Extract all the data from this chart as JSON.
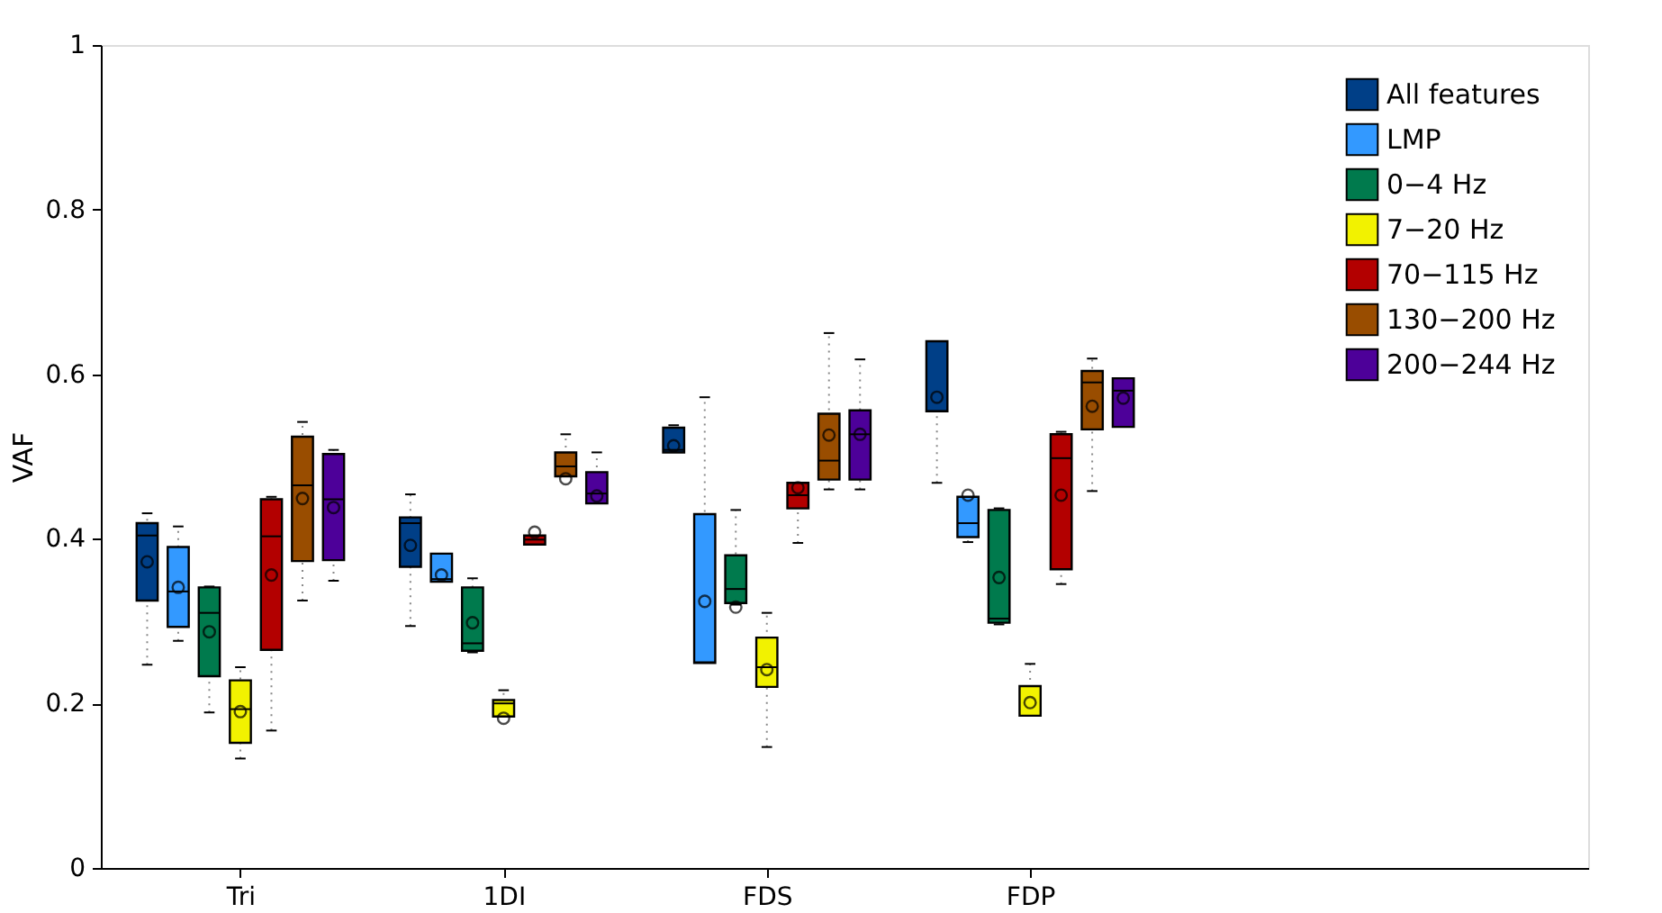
{
  "chart_data": {
    "type": "box",
    "ylabel": "VAF",
    "categories": [
      "Tri",
      "1DI",
      "FDS",
      "FDP"
    ],
    "ylim": [
      0,
      1
    ],
    "yticks": [
      0,
      0.2,
      0.4,
      0.6,
      0.8,
      1
    ],
    "grid": false,
    "legend": "top right",
    "series": [
      {
        "name": "All features",
        "color": "#003f87",
        "boxes": [
          {
            "low": 0.247,
            "q1": 0.325,
            "median": 0.404,
            "q3": 0.419,
            "high": 0.431,
            "mean": 0.372
          },
          {
            "low": 0.294,
            "q1": 0.366,
            "median": 0.419,
            "q3": 0.426,
            "high": 0.454,
            "mean": 0.392
          },
          {
            "low": 0.505,
            "q1": 0.505,
            "median": 0.508,
            "q3": 0.535,
            "high": 0.538,
            "mean": 0.513
          },
          {
            "low": 0.468,
            "q1": 0.555,
            "median": 0.555,
            "q3": 0.64,
            "high": 0.64,
            "mean": 0.572
          }
        ]
      },
      {
        "name": "LMP",
        "color": "#3399ff",
        "boxes": [
          {
            "low": 0.276,
            "q1": 0.293,
            "median": 0.336,
            "q3": 0.39,
            "high": 0.415,
            "mean": 0.341
          },
          {
            "low": 0.348,
            "q1": 0.348,
            "median": 0.351,
            "q3": 0.382,
            "high": 0.382,
            "mean": 0.356
          },
          {
            "low": 0.249,
            "q1": 0.249,
            "median": 0.25,
            "q3": 0.43,
            "high": 0.572,
            "mean": 0.324
          },
          {
            "low": 0.396,
            "q1": 0.402,
            "median": 0.419,
            "q3": 0.451,
            "high": 0.451,
            "mean": 0.453
          }
        ]
      },
      {
        "name": "0−4 Hz",
        "color": "#007a4d",
        "boxes": [
          {
            "low": 0.189,
            "q1": 0.233,
            "median": 0.31,
            "q3": 0.341,
            "high": 0.342,
            "mean": 0.287
          },
          {
            "low": 0.262,
            "q1": 0.264,
            "median": 0.273,
            "q3": 0.341,
            "high": 0.352,
            "mean": 0.298
          },
          {
            "low": 0.32,
            "q1": 0.322,
            "median": 0.339,
            "q3": 0.38,
            "high": 0.435,
            "mean": 0.317
          },
          {
            "low": 0.296,
            "q1": 0.298,
            "median": 0.303,
            "q3": 0.435,
            "high": 0.437,
            "mean": 0.353
          }
        ]
      },
      {
        "name": "7−20 Hz",
        "color": "#f2f200",
        "boxes": [
          {
            "low": 0.133,
            "q1": 0.152,
            "median": 0.193,
            "q3": 0.228,
            "high": 0.244,
            "mean": 0.19
          },
          {
            "low": 0.184,
            "q1": 0.184,
            "median": 0.2,
            "q3": 0.204,
            "high": 0.216,
            "mean": 0.182
          },
          {
            "low": 0.147,
            "q1": 0.22,
            "median": 0.244,
            "q3": 0.28,
            "high": 0.31,
            "mean": 0.241
          },
          {
            "low": 0.185,
            "q1": 0.185,
            "median": 0.221,
            "q3": 0.221,
            "high": 0.248,
            "mean": 0.201
          }
        ]
      },
      {
        "name": "70−115 Hz",
        "color": "#b30000",
        "boxes": [
          {
            "low": 0.167,
            "q1": 0.265,
            "median": 0.403,
            "q3": 0.448,
            "high": 0.451,
            "mean": 0.356
          },
          {
            "low": 0.393,
            "q1": 0.393,
            "median": 0.399,
            "q3": 0.404,
            "high": 0.404,
            "mean": 0.408
          },
          {
            "low": 0.395,
            "q1": 0.437,
            "median": 0.453,
            "q3": 0.468,
            "high": 0.468,
            "mean": 0.462
          },
          {
            "low": 0.345,
            "q1": 0.363,
            "median": 0.498,
            "q3": 0.527,
            "high": 0.53,
            "mean": 0.453
          }
        ]
      },
      {
        "name": "130−200 Hz",
        "color": "#994d00",
        "boxes": [
          {
            "low": 0.325,
            "q1": 0.373,
            "median": 0.465,
            "q3": 0.524,
            "high": 0.542,
            "mean": 0.449
          },
          {
            "low": 0.476,
            "q1": 0.476,
            "median": 0.488,
            "q3": 0.505,
            "high": 0.527,
            "mean": 0.473
          },
          {
            "low": 0.46,
            "q1": 0.472,
            "median": 0.495,
            "q3": 0.552,
            "high": 0.65,
            "mean": 0.526
          },
          {
            "low": 0.458,
            "q1": 0.533,
            "median": 0.59,
            "q3": 0.604,
            "high": 0.619,
            "mean": 0.561
          }
        ]
      },
      {
        "name": "200−244 Hz",
        "color": "#4d0099",
        "boxes": [
          {
            "low": 0.349,
            "q1": 0.374,
            "median": 0.448,
            "q3": 0.503,
            "high": 0.508,
            "mean": 0.438
          },
          {
            "low": 0.443,
            "q1": 0.443,
            "median": 0.455,
            "q3": 0.481,
            "high": 0.505,
            "mean": 0.452
          },
          {
            "low": 0.46,
            "q1": 0.472,
            "median": 0.527,
            "q3": 0.556,
            "high": 0.618,
            "mean": 0.527
          },
          {
            "low": 0.536,
            "q1": 0.536,
            "median": 0.58,
            "q3": 0.595,
            "high": 0.595,
            "mean": 0.571
          }
        ]
      }
    ]
  }
}
